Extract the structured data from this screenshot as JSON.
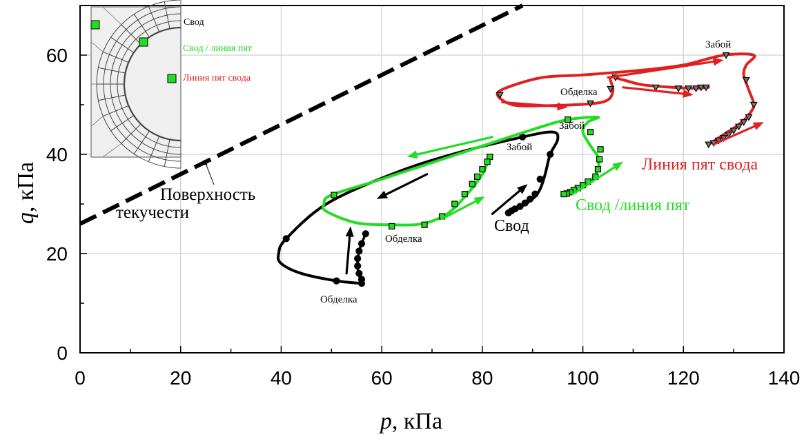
{
  "chart_data": {
    "type": "line",
    "xlabel": {
      "var": "p",
      "unit": ", кПа"
    },
    "ylabel": {
      "var": "q",
      "unit": ", кПа"
    },
    "xlim": [
      0,
      140
    ],
    "ylim": [
      0,
      70
    ],
    "x_ticks": [
      "0",
      "20",
      "40",
      "60",
      "80",
      "100",
      "120",
      "140"
    ],
    "y_ticks": [
      "0",
      "20",
      "40",
      "60"
    ],
    "grid": true,
    "yield_surface": {
      "label_lines": [
        "Поверхность",
        "текучести"
      ],
      "color": "#000000",
      "points": [
        [
          0,
          26
        ],
        [
          88,
          70
        ]
      ]
    },
    "inset": {
      "labels": [
        {
          "text": "Свод",
          "color": "#000000"
        },
        {
          "text": "Свод / линия пят",
          "color": "#22dd22"
        },
        {
          "text": "Линия пят свода",
          "color": "#e02020"
        }
      ]
    },
    "series": [
      {
        "name": "Свод",
        "color": "#000000",
        "marker": "circle",
        "path": [
          [
            56,
            14
          ],
          [
            51,
            14.5
          ],
          [
            44,
            16
          ],
          [
            40,
            18
          ],
          [
            39.5,
            20
          ],
          [
            41,
            23
          ],
          [
            49,
            30
          ],
          [
            62,
            36
          ],
          [
            74,
            40
          ],
          [
            88,
            43.5
          ],
          [
            94,
            44.5
          ],
          [
            95,
            43
          ],
          [
            93.5,
            40
          ],
          [
            92.5,
            36
          ],
          [
            91.5,
            33
          ],
          [
            90,
            31
          ],
          [
            87,
            29
          ],
          [
            85,
            28
          ]
        ],
        "markers": [
          [
            56,
            14
          ],
          [
            51,
            14.5
          ],
          [
            41,
            23
          ],
          [
            88,
            43.5
          ],
          [
            93.5,
            40
          ],
          [
            91.5,
            35
          ],
          [
            90.5,
            32
          ],
          [
            89.5,
            31
          ],
          [
            88.5,
            30.2
          ],
          [
            87.5,
            29.5
          ],
          [
            86.5,
            29
          ],
          [
            85.8,
            28.6
          ],
          [
            85.2,
            28.2
          ],
          [
            56,
            14.8
          ],
          [
            55.5,
            16
          ],
          [
            55.2,
            17.5
          ],
          [
            55.2,
            19
          ],
          [
            55.5,
            20.5
          ],
          [
            56,
            22
          ],
          [
            56.8,
            24
          ]
        ],
        "branch": [
          [
            56,
            14
          ],
          [
            55.2,
            17
          ],
          [
            55.4,
            20
          ],
          [
            56,
            22
          ],
          [
            56.8,
            24
          ]
        ],
        "labels": [
          "Свод",
          "Обделка",
          "Забой"
        ],
        "arrows": [
          [
            [
              53,
              16
            ],
            [
              53.8,
              25.5
            ]
          ],
          [
            [
              69,
              36
            ],
            [
              59,
              31
            ]
          ],
          [
            [
              82,
              28
            ],
            [
              89,
              34
            ]
          ]
        ]
      },
      {
        "name": "Свод /линия пят",
        "color": "#22dd22",
        "marker": "square",
        "path": [
          [
            81.5,
            39.5
          ],
          [
            80,
            36
          ],
          [
            77,
            32
          ],
          [
            73,
            28
          ],
          [
            68,
            26
          ],
          [
            62,
            25.8
          ],
          [
            55,
            26.2
          ],
          [
            49,
            28.5
          ],
          [
            48.5,
            30
          ],
          [
            50,
            31.8
          ],
          [
            60,
            35
          ],
          [
            75,
            40
          ],
          [
            90,
            45
          ],
          [
            97,
            47
          ],
          [
            103,
            47.5
          ],
          [
            101,
            46.5
          ],
          [
            100,
            44.5
          ],
          [
            102,
            41
          ],
          [
            103,
            39.5
          ],
          [
            103,
            37
          ],
          [
            101,
            34
          ],
          [
            98,
            32.5
          ],
          [
            96,
            32
          ]
        ],
        "markers": [
          [
            81.5,
            39.5
          ],
          [
            81,
            38.5
          ],
          [
            80,
            37
          ],
          [
            79,
            35.5
          ],
          [
            78,
            34
          ],
          [
            76.5,
            32
          ],
          [
            74.5,
            30
          ],
          [
            72,
            27.5
          ],
          [
            68.5,
            25.8
          ],
          [
            62,
            25.5
          ],
          [
            50.5,
            31.8
          ],
          [
            97,
            47
          ],
          [
            101.5,
            44.5
          ],
          [
            103.5,
            41
          ],
          [
            103.3,
            39
          ],
          [
            103,
            37
          ],
          [
            102.5,
            35.5
          ],
          [
            101,
            34.5
          ],
          [
            100,
            33.8
          ],
          [
            99,
            33.2
          ],
          [
            98.2,
            32.8
          ],
          [
            97.5,
            32.4
          ],
          [
            96.8,
            32.1
          ],
          [
            96.2,
            32
          ]
        ],
        "labels": [
          "Обделка",
          "Забой"
        ],
        "arrows": [
          [
            [
              72,
              27
            ],
            [
              80.5,
              31.5
            ]
          ],
          [
            [
              82,
              43.5
            ],
            [
              65,
              39.5
            ]
          ],
          [
            [
              98,
              32
            ],
            [
              108,
              38.5
            ]
          ]
        ]
      },
      {
        "name": "Линия пят свода",
        "color": "#e02020",
        "marker": "triangle",
        "path": [
          [
            125,
            42
          ],
          [
            128,
            44
          ],
          [
            131,
            46
          ],
          [
            133,
            48
          ],
          [
            134,
            50
          ],
          [
            133,
            53
          ],
          [
            132,
            56
          ],
          [
            132.5,
            58
          ],
          [
            134,
            60
          ],
          [
            128,
            60
          ],
          [
            120,
            58
          ],
          [
            112,
            57
          ],
          [
            100,
            56
          ],
          [
            92,
            55.5
          ],
          [
            85,
            53.5
          ],
          [
            83,
            52
          ],
          [
            86,
            50
          ],
          [
            92,
            49.8
          ],
          [
            101.5,
            50.2
          ],
          [
            105,
            51
          ],
          [
            106,
            53
          ],
          [
            105.5,
            55.5
          ],
          [
            108,
            55
          ],
          [
            112,
            54
          ],
          [
            118,
            53.5
          ],
          [
            122,
            53.3
          ],
          [
            125,
            53.5
          ]
        ],
        "markers": [
          [
            125,
            42
          ],
          [
            126,
            42.3
          ],
          [
            127,
            42.8
          ],
          [
            128,
            43.3
          ],
          [
            129,
            44
          ],
          [
            130,
            44.8
          ],
          [
            131,
            45.6
          ],
          [
            132,
            46.5
          ],
          [
            133,
            47.5
          ],
          [
            134,
            50
          ],
          [
            132.5,
            55
          ],
          [
            128.5,
            60
          ],
          [
            106.5,
            55.5
          ],
          [
            105.5,
            53.2
          ],
          [
            101.5,
            50.3
          ],
          [
            83.5,
            52
          ],
          [
            114.5,
            53.5
          ],
          [
            119,
            53.3
          ],
          [
            121,
            53.3
          ],
          [
            122.5,
            53.3
          ],
          [
            123.5,
            53.5
          ],
          [
            124.5,
            53.5
          ]
        ],
        "labels": [
          "Обделка",
          "Забой"
        ],
        "arrows": [
          [
            [
              105,
              55.5
            ],
            [
              128,
              59
            ]
          ],
          [
            [
              84,
              50.5
            ],
            [
              97,
              49.5
            ]
          ],
          [
            [
              108,
              53.5
            ],
            [
              122,
              52
            ]
          ],
          [
            [
              126,
              42
            ],
            [
              136,
              46.5
            ]
          ]
        ]
      }
    ]
  }
}
